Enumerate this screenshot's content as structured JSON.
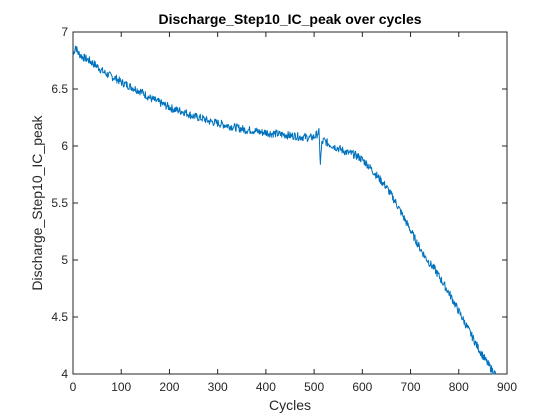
{
  "chart_data": {
    "type": "line",
    "title": "Discharge_Step10_IC_peak over cycles",
    "xlabel": "Cycles",
    "ylabel": "Discharge_Step10_IC_peak",
    "xlim": [
      0,
      900
    ],
    "ylim": [
      4,
      7
    ],
    "xticks": [
      "0",
      "100",
      "200",
      "300",
      "400",
      "500",
      "600",
      "700",
      "800",
      "900"
    ],
    "yticks": [
      "4",
      "4.5",
      "5",
      "5.5",
      "6",
      "6.5",
      "7"
    ],
    "grid": false,
    "line_color": "#0072BD",
    "series": [
      {
        "x": [
          1,
          5,
          10,
          20,
          30,
          40,
          50,
          60,
          70,
          80,
          90,
          100,
          110,
          120,
          130,
          140,
          150,
          160,
          170,
          180,
          190,
          200,
          210,
          220,
          230,
          240,
          250,
          260,
          270,
          280,
          290,
          300,
          310,
          320,
          330,
          340,
          350,
          360,
          370,
          380,
          390,
          400,
          410,
          420,
          430,
          440,
          450,
          460,
          470,
          480,
          490,
          500,
          505,
          510,
          513,
          516,
          520,
          530,
          540,
          550,
          560,
          570,
          580,
          590,
          600,
          610,
          620,
          630,
          640,
          650,
          660,
          670,
          680,
          690,
          700,
          710,
          720,
          730,
          740,
          750,
          760,
          770,
          780,
          790,
          800,
          810,
          820,
          830,
          840,
          850,
          860,
          870,
          878
        ],
        "y": [
          6.8,
          6.88,
          6.82,
          6.78,
          6.76,
          6.73,
          6.7,
          6.66,
          6.63,
          6.61,
          6.59,
          6.56,
          6.54,
          6.52,
          6.5,
          6.48,
          6.45,
          6.42,
          6.4,
          6.38,
          6.36,
          6.34,
          6.32,
          6.31,
          6.3,
          6.28,
          6.26,
          6.25,
          6.24,
          6.22,
          6.21,
          6.2,
          6.19,
          6.18,
          6.17,
          6.16,
          6.15,
          6.14,
          6.14,
          6.13,
          6.12,
          6.12,
          6.11,
          6.11,
          6.1,
          6.1,
          6.09,
          6.09,
          6.08,
          6.08,
          6.07,
          6.08,
          6.1,
          6.12,
          5.85,
          6.02,
          6.05,
          6.02,
          6.0,
          5.98,
          5.96,
          5.94,
          5.93,
          5.91,
          5.88,
          5.84,
          5.79,
          5.74,
          5.69,
          5.64,
          5.57,
          5.5,
          5.42,
          5.34,
          5.26,
          5.18,
          5.1,
          5.03,
          4.97,
          4.92,
          4.85,
          4.78,
          4.71,
          4.63,
          4.55,
          4.47,
          4.39,
          4.31,
          4.23,
          4.16,
          4.09,
          4.03,
          3.99
        ]
      }
    ]
  }
}
